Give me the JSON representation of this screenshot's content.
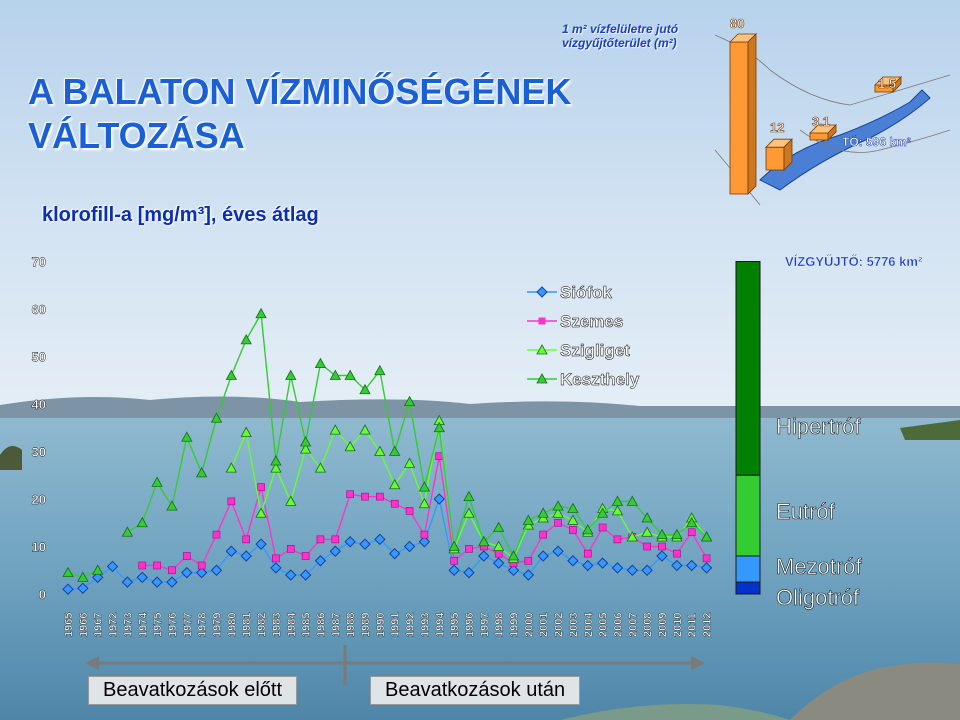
{
  "title_line1": "A BALATON VÍZMINŐSÉGÉNEK",
  "title_line2": "VÁLTOZÁSA",
  "subtitle": "klorofill-a [mg/m³], éves átlag",
  "inset": {
    "label_line1": "1 m² vízfelületre jutó",
    "label_line2": "vízgyűjtőterület (m²)",
    "bars": [
      {
        "label": "80",
        "value": 80
      },
      {
        "label": "12",
        "value": 12
      },
      {
        "label": "3.1",
        "value": 3.1
      },
      {
        "label": "1.5",
        "value": 1.5
      }
    ],
    "lake_label": "TÓ: 596 km²",
    "bar_color": "#ff9933"
  },
  "catchment_label": "VÍZGYŰJTŐ: 5776 km²",
  "categories": {
    "hipertrof": "Hipertróf",
    "eutrof": "Eutróf",
    "mezotrof": "Mezotróf",
    "oligotrof": "Oligotróf"
  },
  "trophic_bar": [
    {
      "name": "Hipertróf",
      "from": 25,
      "to": 70,
      "color": "#008000"
    },
    {
      "name": "Eutróf",
      "from": 8,
      "to": 25,
      "color": "#33cc33"
    },
    {
      "name": "Mezotróf",
      "from": 2.5,
      "to": 8,
      "color": "#3399ff"
    },
    {
      "name": "Oligotróf",
      "from": 0,
      "to": 2.5,
      "color": "#0033cc"
    }
  ],
  "phases": {
    "before": "Beavatkozások előtt",
    "after": "Beavatkozások után"
  },
  "chart_data": {
    "type": "line",
    "title": "klorofill-a [mg/m³], éves átlag",
    "xlabel": "",
    "ylabel": "",
    "ylim": [
      0,
      70
    ],
    "yticks": [
      0,
      10,
      20,
      30,
      40,
      50,
      60,
      70
    ],
    "grid": false,
    "legend_position": "top-center",
    "x": [
      1965,
      1966,
      1967,
      1972,
      1973,
      1974,
      1975,
      1976,
      1977,
      1978,
      1979,
      1980,
      1981,
      1982,
      1983,
      1984,
      1985,
      1986,
      1987,
      1988,
      1989,
      1990,
      1991,
      1992,
      1993,
      1994,
      1995,
      1996,
      1997,
      1998,
      1999,
      2000,
      2001,
      2002,
      2003,
      2004,
      2005,
      2006,
      2007,
      2008,
      2009,
      2010,
      2011,
      2012
    ],
    "series": [
      {
        "name": "Siófok",
        "color": "#3399ff",
        "marker": "diamond",
        "values": [
          1,
          1.2,
          3.5,
          5.8,
          2.5,
          3.5,
          2.5,
          2.5,
          4.5,
          4.5,
          5,
          9,
          8,
          10.5,
          5.5,
          4,
          4,
          7,
          9,
          11,
          10.5,
          11.5,
          8.5,
          10,
          11,
          20,
          5,
          4.5,
          8,
          6.5,
          5,
          4,
          8,
          9,
          7,
          6,
          6.5,
          5.5,
          5,
          5,
          8,
          6,
          6,
          5.5
        ]
      },
      {
        "name": "Szemes",
        "color": "#ff33cc",
        "marker": "square",
        "values": [
          null,
          null,
          null,
          null,
          null,
          6,
          6,
          5,
          8,
          6,
          12.5,
          19.5,
          11.5,
          22.5,
          7.5,
          9.5,
          8,
          11.5,
          11.5,
          21,
          20.5,
          20.5,
          19,
          17.5,
          12.5,
          29,
          7,
          9.5,
          10,
          8.5,
          6.5,
          7,
          12.5,
          15,
          13.5,
          8.5,
          14,
          11.5,
          12,
          10,
          10,
          8.5,
          13,
          7.5
        ]
      },
      {
        "name": "Szigliget",
        "color": "#66ff33",
        "marker": "triangle",
        "values": [
          null,
          null,
          null,
          null,
          null,
          null,
          null,
          null,
          null,
          null,
          null,
          26.5,
          34,
          17,
          26.5,
          19.5,
          30.5,
          26.5,
          34.5,
          31,
          34.5,
          30,
          23,
          27.5,
          19,
          36.5,
          9.5,
          17,
          11,
          10,
          7.5,
          14.5,
          16,
          17,
          15.5,
          13,
          18,
          17.5,
          12,
          13,
          12,
          12,
          16,
          12
        ]
      },
      {
        "name": "Keszthely",
        "color": "#33cc33",
        "marker": "triangle",
        "values": [
          4.5,
          3.5,
          5,
          null,
          13,
          15,
          23.5,
          18.5,
          33,
          25.5,
          37,
          46,
          53.5,
          59,
          28,
          46,
          32,
          48.5,
          46,
          46,
          43,
          47,
          30,
          40.5,
          22.5,
          35,
          10,
          20.5,
          11,
          14,
          8,
          15.5,
          17,
          18.5,
          18,
          13.5,
          17,
          19.5,
          19.5,
          16,
          12.5,
          12.5,
          15,
          12
        ]
      }
    ]
  }
}
